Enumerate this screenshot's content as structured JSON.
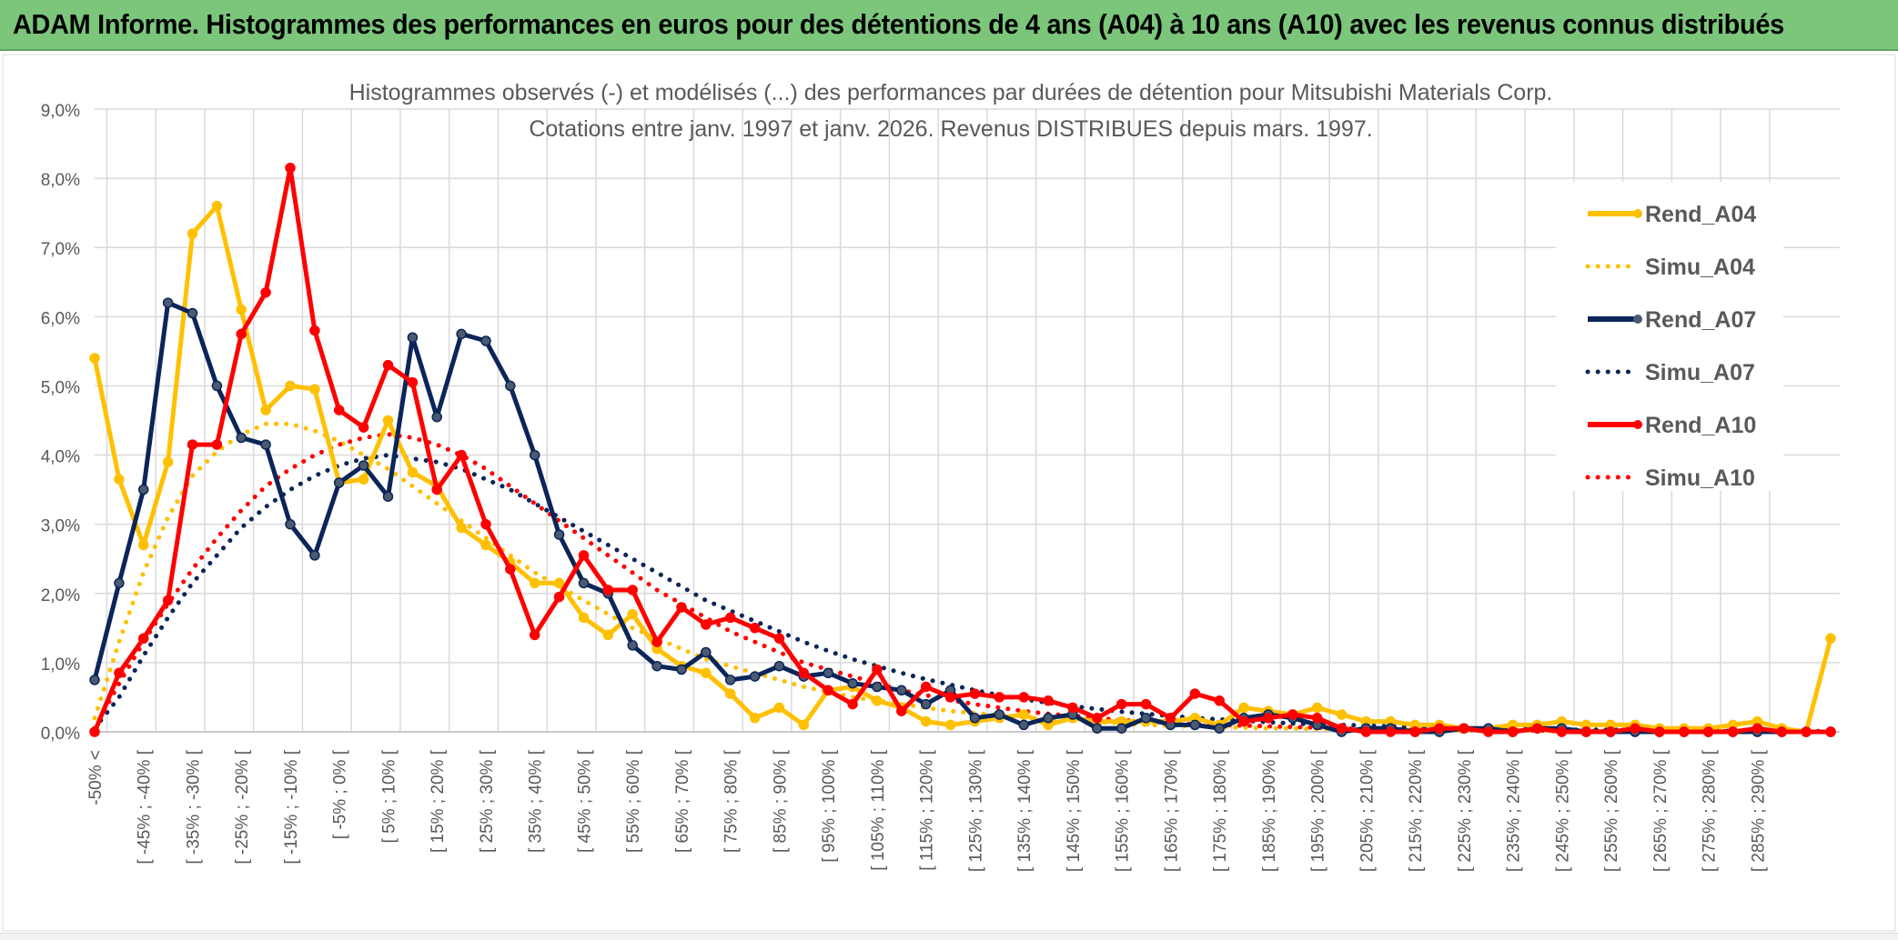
{
  "banner": {
    "title": "ADAM Informe. Histogrammes des performances en euros pour des détentions de 4 ans (A04) à 10 ans (A10) avec les revenus connus distribués"
  },
  "chart_data": {
    "type": "line",
    "title": "Histogrammes observés (-) et modélisés (...) des performances par durées de détention pour Mitsubishi Materials Corp.",
    "subtitle": "Cotations entre janv. 1997 et janv. 2026.  Revenus DISTRIBUES depuis mars. 1997.",
    "ylim": [
      0,
      9
    ],
    "y_ticks": [
      "0,0%",
      "1,0%",
      "2,0%",
      "3,0%",
      "4,0%",
      "5,0%",
      "6,0%",
      "7,0%",
      "8,0%",
      "9,0%"
    ],
    "x_labels": [
      "-50% <",
      "[ -45% ; -40% [",
      "[ -35% ; -30% [",
      "[ -25% ; -20% [",
      "[ -15% ; -10% [",
      "[ -5% ; 0% [",
      "[ 5% ; 10% [",
      "[ 15% ; 20% [",
      "[ 25% ; 30% [",
      "[ 35% ; 40% [",
      "[ 45% ; 50% [",
      "[ 55% ; 60% [",
      "[ 65% ; 70% [",
      "[ 75% ; 80% [",
      "[ 85% ; 90% [",
      "[ 95% ; 100% [",
      "[ 105% ; 110% [",
      "[ 115% ; 120% [",
      "[ 125% ; 130% [",
      "[ 135% ; 140% [",
      "[ 145% ; 150% [",
      "[ 155% ; 160% [",
      "[ 165% ; 170% [",
      "[ 175% ; 180% [",
      "[ 185% ; 190% [",
      "[ 195% ; 200% [",
      "[ 205% ; 210% [",
      "[ 215% ; 220% [",
      "[ 225% ; 230% [",
      "[ 235% ; 240% [",
      "[ 245% ; 250% [",
      "[ 255% ; 260% [",
      "[ 265% ; 270% [",
      "[ 275% ; 280% [",
      "[ 285% ; 290% ["
    ],
    "legend_position": "right",
    "series": [
      {
        "name": "Rend_A04",
        "style": "solid",
        "color": "#FFC000",
        "values": [
          5.4,
          3.65,
          2.7,
          3.9,
          7.2,
          7.6,
          6.1,
          4.65,
          5.0,
          4.95,
          3.6,
          3.65,
          4.5,
          3.75,
          3.55,
          2.95,
          2.7,
          2.45,
          2.15,
          2.15,
          1.65,
          1.4,
          1.7,
          1.2,
          0.95,
          0.85,
          0.55,
          0.2,
          0.35,
          0.1,
          0.6,
          0.65,
          0.45,
          0.35,
          0.15,
          0.1,
          0.15,
          0.2,
          0.25,
          0.1,
          0.2,
          0.15,
          0.15,
          0.15,
          0.15,
          0.2,
          0.1,
          0.35,
          0.3,
          0.25,
          0.35,
          0.25,
          0.15,
          0.15,
          0.1,
          0.1,
          0.05,
          0.05,
          0.1,
          0.1,
          0.15,
          0.1,
          0.1,
          0.1,
          0.05,
          0.05,
          0.05,
          0.1,
          0.15,
          0.05,
          0.0,
          1.35
        ]
      },
      {
        "name": "Simu_A04",
        "style": "dotted",
        "color": "#FFC000",
        "values": [
          0.2,
          1.3,
          2.3,
          3.1,
          3.7,
          4.05,
          4.3,
          4.45,
          4.45,
          4.35,
          4.2,
          4.0,
          3.8,
          3.55,
          3.3,
          3.05,
          2.8,
          2.55,
          2.3,
          2.1,
          1.9,
          1.7,
          1.5,
          1.35,
          1.2,
          1.05,
          0.95,
          0.85,
          0.75,
          0.65,
          0.58,
          0.5,
          0.45,
          0.4,
          0.35,
          0.3,
          0.27,
          0.24,
          0.21,
          0.18,
          0.16,
          0.14,
          0.12,
          0.1,
          0.09,
          0.08,
          0.07,
          0.06,
          0.05,
          0.05,
          0.04,
          0.04,
          0.03,
          0.03,
          0.03,
          0.02,
          0.02,
          0.02,
          0.02,
          0.01,
          0.01,
          0.01,
          0.01,
          0.01,
          0.01,
          0.01,
          0.01,
          0.01,
          0.0,
          0.0,
          0.0,
          0.0
        ]
      },
      {
        "name": "Rend_A07",
        "style": "solid",
        "color": "#0B2559",
        "values": [
          0.75,
          2.15,
          3.5,
          6.2,
          6.05,
          5.0,
          4.25,
          4.15,
          3.0,
          2.55,
          3.6,
          3.85,
          3.4,
          5.7,
          4.55,
          5.75,
          5.65,
          5.0,
          4.0,
          2.85,
          2.15,
          2.0,
          1.25,
          0.95,
          0.9,
          1.15,
          0.75,
          0.8,
          0.95,
          0.8,
          0.85,
          0.7,
          0.65,
          0.6,
          0.4,
          0.6,
          0.2,
          0.25,
          0.1,
          0.2,
          0.25,
          0.05,
          0.05,
          0.2,
          0.1,
          0.1,
          0.05,
          0.2,
          0.25,
          0.2,
          0.1,
          0.0,
          0.05,
          0.05,
          0.0,
          0.0,
          0.05,
          0.05,
          0.0,
          0.05,
          0.05,
          0.0,
          0.0,
          0.0,
          0.0,
          0.0,
          0.0,
          0.0,
          0.0,
          0.0,
          0.0,
          0.0
        ]
      },
      {
        "name": "Simu_A07",
        "style": "dotted",
        "color": "#0B2559",
        "values": [
          0.05,
          0.5,
          1.1,
          1.65,
          2.15,
          2.55,
          2.95,
          3.25,
          3.5,
          3.7,
          3.85,
          3.95,
          4.0,
          3.95,
          3.9,
          3.8,
          3.65,
          3.5,
          3.3,
          3.1,
          2.9,
          2.7,
          2.5,
          2.3,
          2.1,
          1.9,
          1.75,
          1.6,
          1.45,
          1.3,
          1.17,
          1.05,
          0.95,
          0.85,
          0.76,
          0.68,
          0.6,
          0.53,
          0.47,
          0.42,
          0.37,
          0.33,
          0.29,
          0.26,
          0.23,
          0.2,
          0.18,
          0.16,
          0.14,
          0.12,
          0.11,
          0.1,
          0.09,
          0.08,
          0.07,
          0.06,
          0.05,
          0.05,
          0.04,
          0.04,
          0.03,
          0.03,
          0.03,
          0.02,
          0.02,
          0.02,
          0.02,
          0.01,
          0.01,
          0.01,
          0.01,
          0.01
        ]
      },
      {
        "name": "Rend_A10",
        "style": "solid",
        "color": "#FF0000",
        "values": [
          0.0,
          0.85,
          1.35,
          1.9,
          4.15,
          4.15,
          5.75,
          6.35,
          8.15,
          5.8,
          4.65,
          4.4,
          5.3,
          5.05,
          3.5,
          4.0,
          3.0,
          2.35,
          1.4,
          1.95,
          2.55,
          2.05,
          2.05,
          1.3,
          1.8,
          1.55,
          1.65,
          1.5,
          1.35,
          0.85,
          0.6,
          0.4,
          0.9,
          0.3,
          0.65,
          0.5,
          0.55,
          0.5,
          0.5,
          0.45,
          0.35,
          0.2,
          0.4,
          0.4,
          0.2,
          0.55,
          0.45,
          0.15,
          0.2,
          0.25,
          0.2,
          0.05,
          0.0,
          0.0,
          0.0,
          0.05,
          0.05,
          0.0,
          0.0,
          0.05,
          0.0,
          0.0,
          0.0,
          0.05,
          0.0,
          0.0,
          0.0,
          0.0,
          0.05,
          0.0,
          0.0,
          0.0
        ]
      },
      {
        "name": "Simu_A10",
        "style": "dotted",
        "color": "#FF0000",
        "values": [
          0.05,
          0.7,
          1.3,
          1.85,
          2.35,
          2.8,
          3.2,
          3.55,
          3.8,
          4.0,
          4.15,
          4.25,
          4.3,
          4.25,
          4.15,
          4.0,
          3.8,
          3.55,
          3.3,
          3.05,
          2.8,
          2.55,
          2.3,
          2.05,
          1.85,
          1.65,
          1.45,
          1.3,
          1.15,
          1.0,
          0.9,
          0.8,
          0.7,
          0.6,
          0.53,
          0.46,
          0.4,
          0.35,
          0.3,
          0.26,
          0.23,
          0.2,
          0.17,
          0.15,
          0.13,
          0.11,
          0.1,
          0.09,
          0.08,
          0.07,
          0.06,
          0.05,
          0.04,
          0.04,
          0.03,
          0.03,
          0.03,
          0.02,
          0.02,
          0.02,
          0.01,
          0.01,
          0.01,
          0.01,
          0.01,
          0.01,
          0.01,
          0.01,
          0.0,
          0.0,
          0.0,
          0.0
        ]
      }
    ]
  }
}
